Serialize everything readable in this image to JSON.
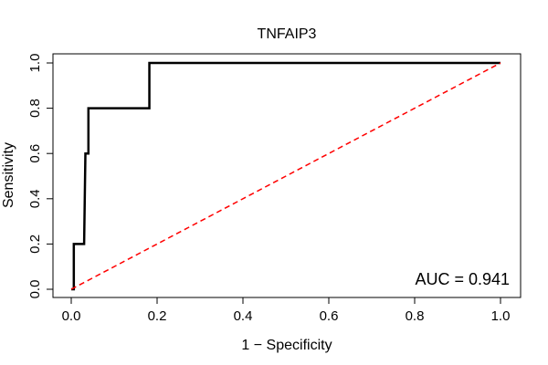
{
  "chart_data": {
    "type": "line",
    "title": "TNFAIP3",
    "xlabel": "1 − Specificity",
    "ylabel": "Sensitivity",
    "xlim": [
      0,
      1
    ],
    "ylim": [
      0,
      1
    ],
    "x_ticks": [
      "0.0",
      "0.2",
      "0.4",
      "0.6",
      "0.8",
      "1.0"
    ],
    "y_ticks": [
      "0.0",
      "0.2",
      "0.4",
      "0.6",
      "0.8",
      "1.0"
    ],
    "grid": false,
    "series": [
      {
        "color": "#000000",
        "style": "solid",
        "x": [
          0.0,
          0.0,
          0.006,
          0.006,
          0.03,
          0.033,
          0.04,
          0.04,
          0.182,
          0.182,
          1.0
        ],
        "y": [
          0.0,
          0.0,
          0.0,
          0.2,
          0.2,
          0.6,
          0.6,
          0.8,
          0.8,
          1.0,
          1.0
        ]
      },
      {
        "color": "#ff0000",
        "style": "dashed",
        "x": [
          0.0,
          1.0
        ],
        "y": [
          0.0,
          1.0
        ]
      }
    ],
    "annotation": "AUC = 0.941"
  }
}
